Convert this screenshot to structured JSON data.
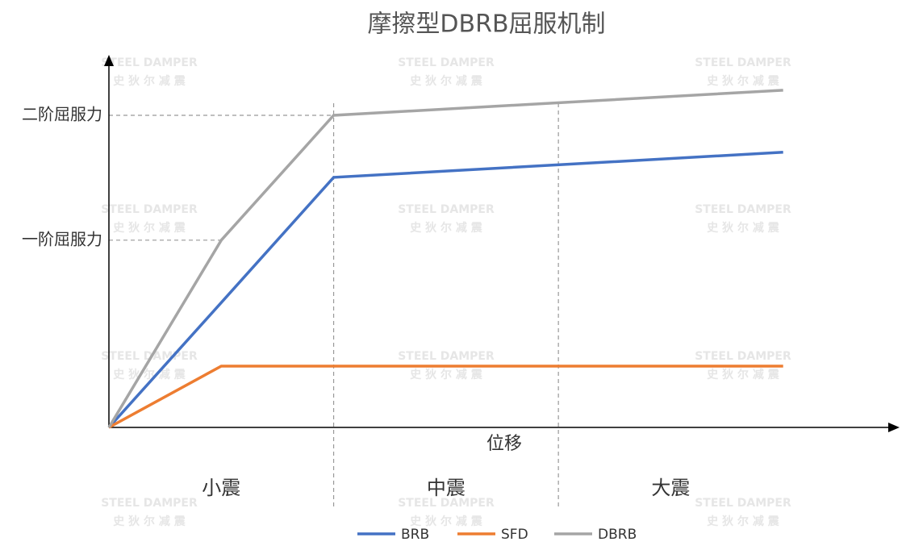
{
  "chart_data": {
    "type": "line",
    "title": "摩擦型DBRB屈服机制",
    "x_label": "位移",
    "x": [
      0,
      0.5,
      1,
      3
    ],
    "xlim": [
      0,
      3.5
    ],
    "ylim": [
      0,
      100
    ],
    "yticks": [
      {
        "value": 50.7,
        "label": "一阶屈服力"
      },
      {
        "value": 84.5,
        "label": "二阶屈服力"
      }
    ],
    "series": [
      {
        "name": "BRB",
        "color": "#4472c4",
        "values": [
          0,
          33.8,
          67.7,
          74.5
        ]
      },
      {
        "name": "SFD",
        "color": "#ed7d31",
        "values": [
          0,
          16.6,
          16.6,
          16.6
        ]
      },
      {
        "name": "DBRB",
        "color": "#a5a5a5",
        "values": [
          0,
          50.7,
          84.5,
          91.3
        ]
      }
    ],
    "regions": [
      {
        "label": "小震",
        "range": [
          0,
          1
        ]
      },
      {
        "label": "中震",
        "range": [
          1,
          2
        ]
      },
      {
        "label": "大震",
        "range": [
          2,
          3
        ]
      }
    ],
    "legend": "bottom",
    "watermark": {
      "line1": "STEEL DAMPER",
      "line2": "史 狄 尔 减 震"
    }
  }
}
